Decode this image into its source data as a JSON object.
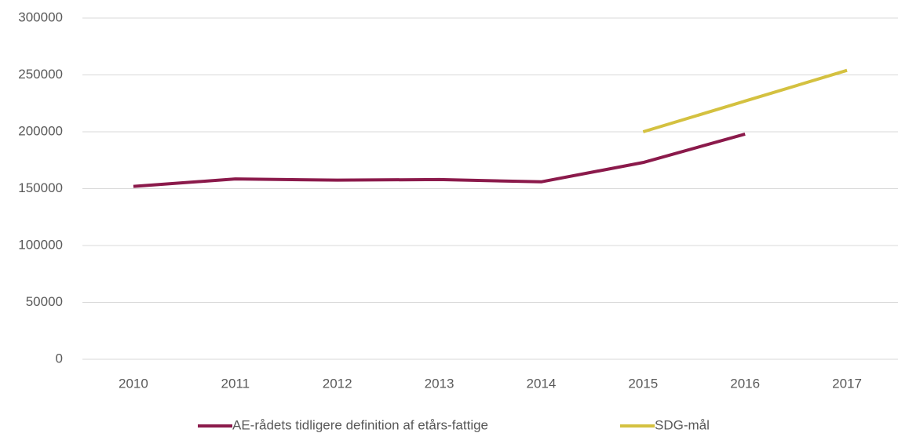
{
  "chart_data": {
    "type": "line",
    "categories": [
      "2010",
      "2011",
      "2012",
      "2013",
      "2014",
      "2015",
      "2016",
      "2017"
    ],
    "series": [
      {
        "name": "AE-rådets tidligere definition af etårs-fattige",
        "color": "#8b1a4b",
        "values": [
          152000,
          158500,
          157500,
          158000,
          156000,
          173000,
          198000,
          null
        ]
      },
      {
        "name": "SDG-mål",
        "color": "#d4c140",
        "values": [
          null,
          null,
          null,
          null,
          null,
          200000,
          227000,
          254000
        ]
      }
    ],
    "ylim": [
      0,
      300000
    ],
    "yticks": [
      0,
      50000,
      100000,
      150000,
      200000,
      250000,
      300000
    ],
    "grid": true
  }
}
